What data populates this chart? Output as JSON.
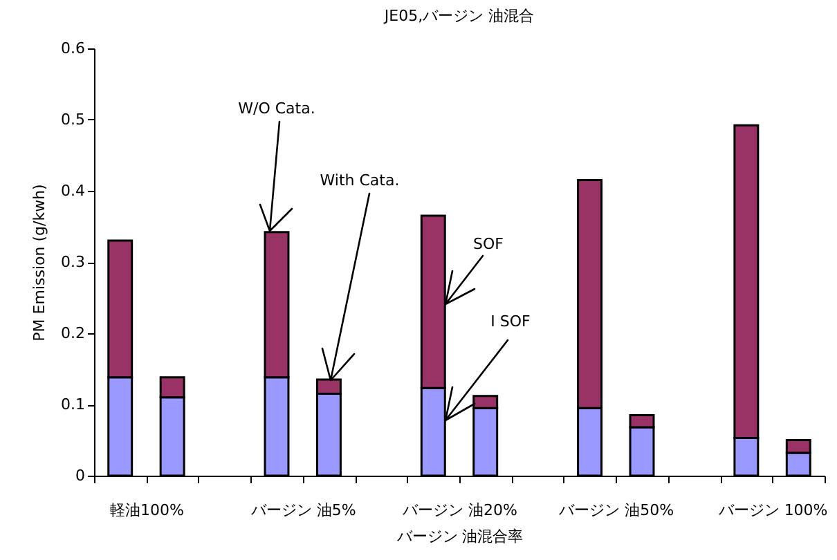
{
  "chart_data": {
    "type": "bar",
    "title": "JE05,バージン 油混合",
    "xlabel": "バージン 油混合率",
    "ylabel": "PM Emission (g/kwh)",
    "categories": [
      "軽油100%",
      null,
      null,
      "バージン 油5%",
      null,
      null,
      "バージン 油20%",
      null,
      null,
      "バージン 油50%",
      null,
      null,
      "バージン 100%",
      null
    ],
    "stacked": true,
    "series": [
      {
        "name": "I SOF",
        "color": "#9999ff",
        "values": [
          0.138,
          0.11,
          null,
          0.138,
          0.115,
          null,
          0.123,
          0.095,
          null,
          0.095,
          0.068,
          null,
          0.053,
          0.032
        ]
      },
      {
        "name": "SOF",
        "color": "#993366",
        "values": [
          0.192,
          0.028,
          null,
          0.204,
          0.02,
          null,
          0.242,
          0.017,
          null,
          0.32,
          0.017,
          null,
          0.439,
          0.018
        ]
      }
    ],
    "annotations": [
      "W/O Cata.",
      "With Cata."
    ],
    "ylim": [
      0,
      0.6
    ],
    "yticks": [
      0,
      0.1,
      0.2,
      0.3,
      0.4,
      0.5,
      0.6
    ],
    "grid": false,
    "legend": false
  }
}
